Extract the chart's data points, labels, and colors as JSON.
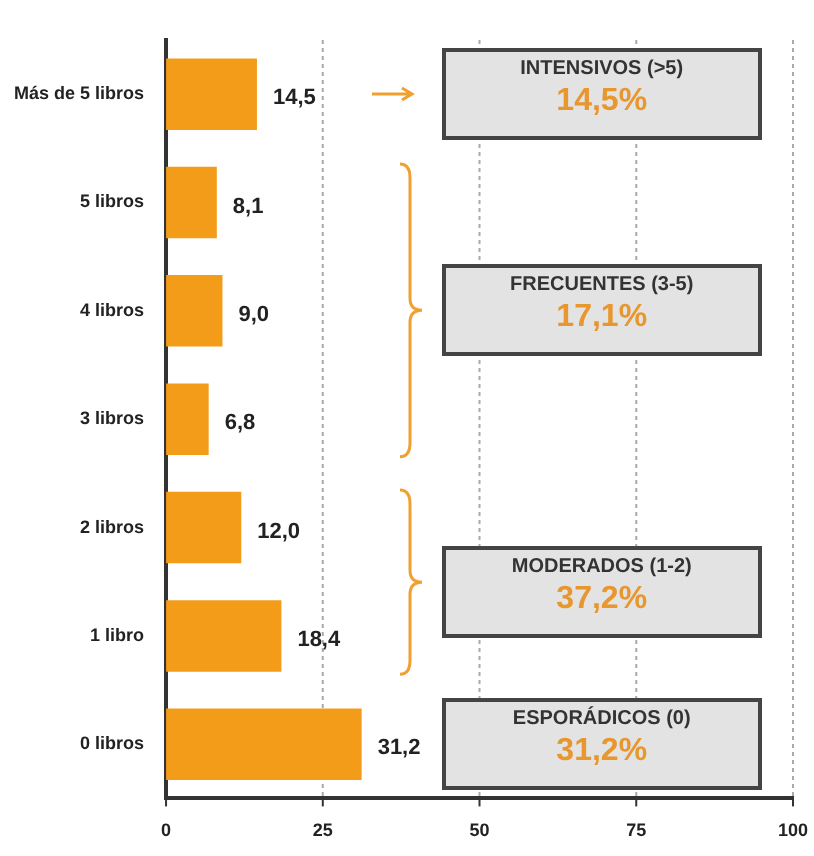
{
  "chart_data": {
    "type": "bar",
    "orientation": "horizontal",
    "categories": [
      "Más de 5 libros",
      "5 libros",
      "4 libros",
      "3 libros",
      "2 libros",
      "1 libro",
      "0 libros"
    ],
    "values": [
      14.5,
      8.1,
      9.0,
      6.8,
      12.0,
      18.4,
      31.2
    ],
    "value_labels": [
      "14,5",
      "8,1",
      "9,0",
      "6,8",
      "12,0",
      "18,4",
      "31,2"
    ],
    "color": "#f39c1a",
    "xlim": [
      0,
      100
    ],
    "xticks": [
      0,
      25,
      50,
      75,
      100
    ],
    "grid": "x",
    "legend": false,
    "annotations": [
      "INTENSIVOS (>5)",
      "14,5%",
      "FRECUENTES (3-5)",
      "17,1%",
      "MODERADOS (1-2)",
      "37,2%",
      "ESPORÁDICOS (0)",
      "31,2%"
    ]
  }
}
